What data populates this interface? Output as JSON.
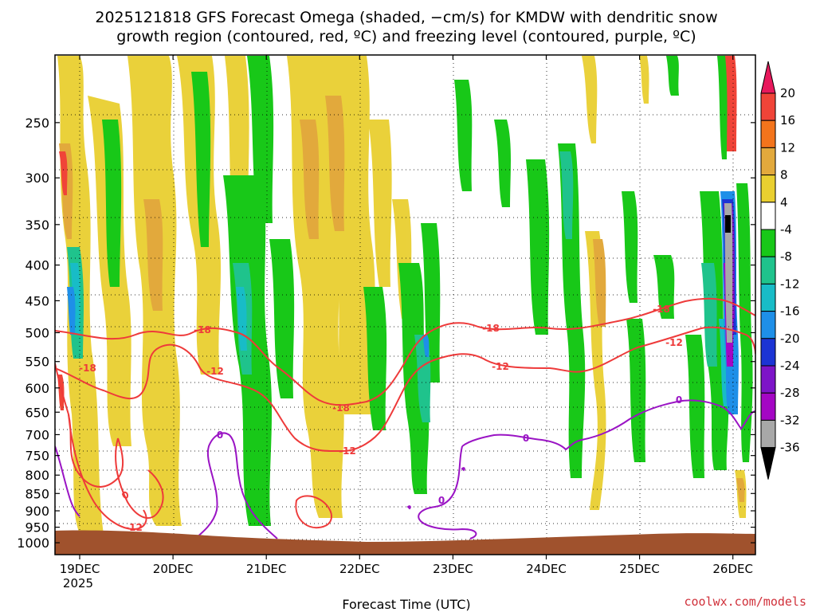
{
  "title_line1": "2025121818 GFS Forecast Omega (shaded, −cm/s) for KMDW with dendritic snow",
  "title_line2": "growth region (contoured, red, ºC) and freezing level (contoured, purple, ºC)",
  "credit": "coolwx.com/models",
  "chart_data": {
    "type": "heatmap",
    "title": "2025121818 GFS Forecast Omega (shaded, −cm/s) for KMDW with dendritic snow growth region (contoured, red, ºC) and freezing level (contoured, purple, ºC)",
    "xlabel": "Forecast Time (UTC)",
    "ylabel": "",
    "x_ticks": [
      "19DEC",
      "20DEC",
      "21DEC",
      "22DEC",
      "23DEC",
      "24DEC",
      "25DEC",
      "26DEC"
    ],
    "x_year": "2025",
    "x_range_days_labels": [
      "19DEC",
      "26DEC"
    ],
    "y_ticks": [
      250,
      300,
      350,
      400,
      450,
      500,
      550,
      600,
      650,
      700,
      750,
      800,
      850,
      900,
      950,
      1000
    ],
    "y_range_hpa": [
      200,
      1040
    ],
    "y_scale": "log-pressure",
    "grid": "dotted",
    "colorbar": {
      "levels": [
        20,
        16,
        12,
        8,
        4,
        -4,
        -8,
        -12,
        -16,
        -20,
        -24,
        -28,
        -32,
        -36
      ],
      "colors": [
        "#e8185c",
        "#f04438",
        "#f3741c",
        "#e2a93c",
        "#e9cf30",
        "#ffffff",
        "#18c818",
        "#1fc38c",
        "#18bcc7",
        "#1e8fe8",
        "#1c34d4",
        "#7d14c8",
        "#a406c4",
        "#a8a8a8",
        "#000000"
      ],
      "extend": "both"
    },
    "contours": [
      {
        "color": "#ee3a3a",
        "levels": [
          -18,
          -12
        ],
        "label_values": [
          "-18",
          "-12"
        ]
      },
      {
        "color": "#9a14c4",
        "levels": [
          0
        ],
        "label_values": [
          "0"
        ]
      }
    ],
    "ground_color": "#a0522d"
  }
}
